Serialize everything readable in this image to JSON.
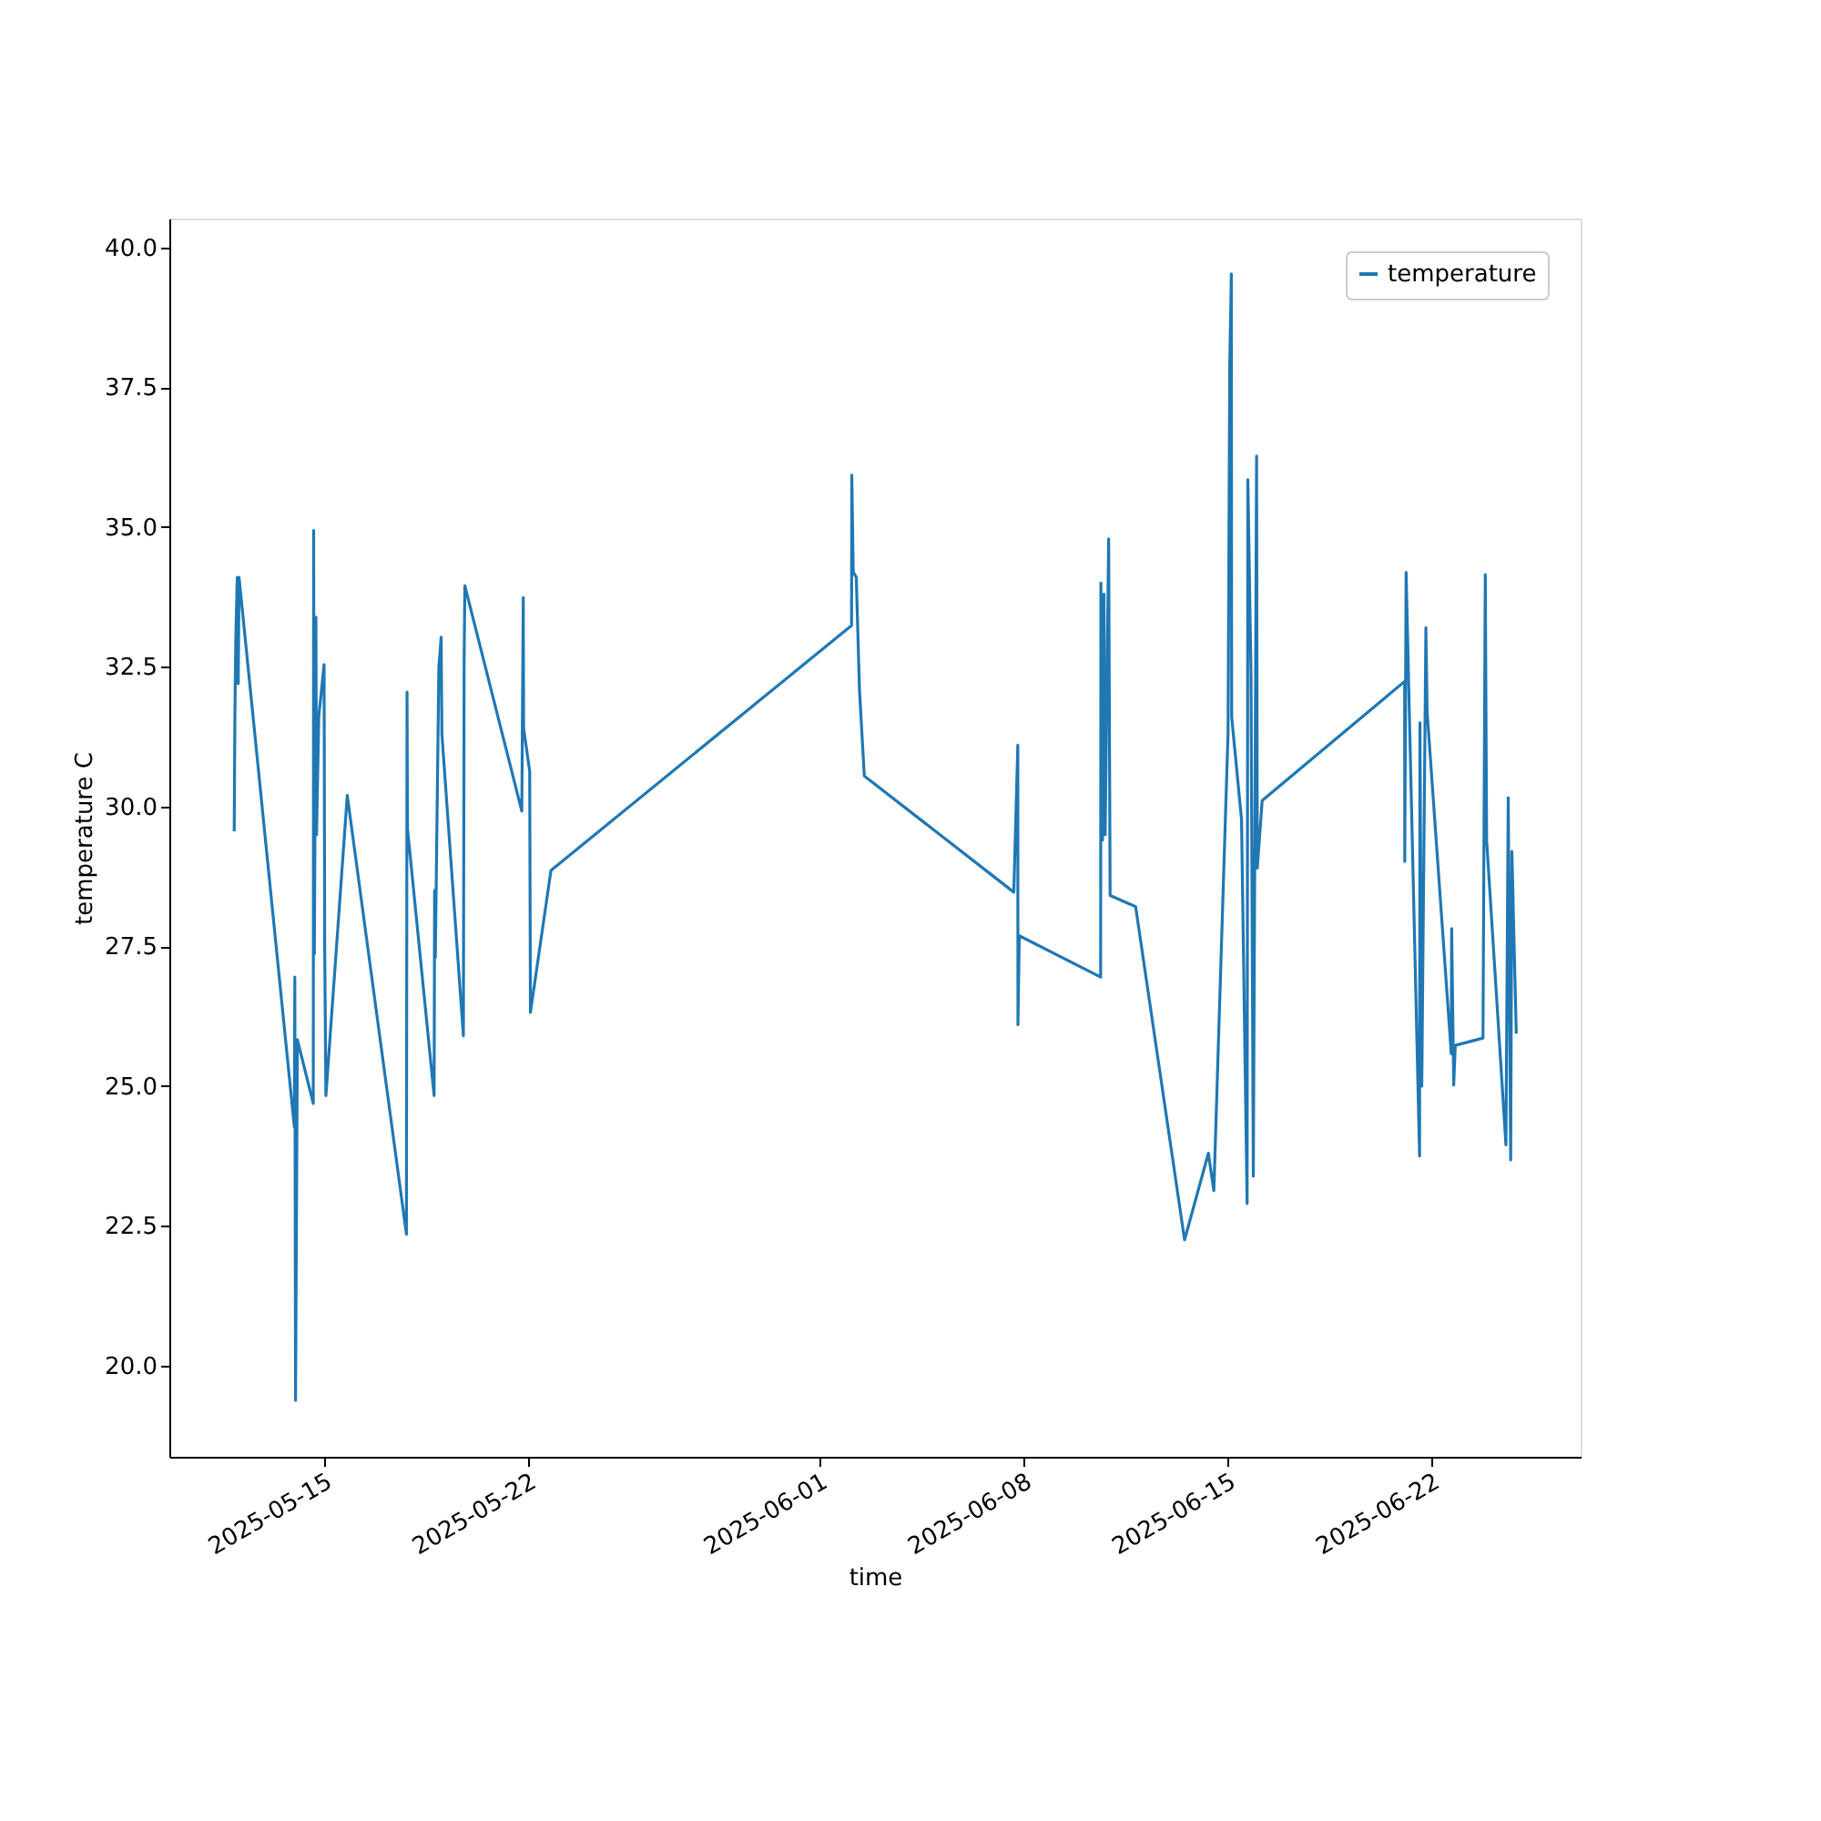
{
  "chart_data": {
    "type": "line",
    "xlabel": "time",
    "ylabel": "temperature C",
    "xlim": [
      "2025-05-09T17:00",
      "2025-06-27T03:00"
    ],
    "ylim": [
      18.37,
      40.52
    ],
    "xticks": [
      "2025-05-15",
      "2025-05-22",
      "2025-06-01",
      "2025-06-08",
      "2025-06-15",
      "2025-06-22"
    ],
    "yticks": [
      {
        "value": 20,
        "label": "20.0"
      },
      22.5,
      {
        "value": 25,
        "label": "25.0"
      },
      27.5,
      {
        "value": 30,
        "label": "30.0"
      },
      32.5,
      {
        "value": 35,
        "label": "35.0"
      },
      37.5,
      {
        "value": 40,
        "label": "40.0"
      }
    ],
    "grid": false,
    "legend": "top right",
    "marker": "none",
    "line_style": "solid",
    "x": [
      "2025-05-11T22:24",
      "2025-05-11T23:00",
      "2025-05-11T23:42",
      "2025-05-12T00:54",
      "2025-05-12T01:42",
      "2025-05-12T02:24",
      "2025-05-13T23:54",
      "2025-05-14T00:18",
      "2025-05-14T00:54",
      "2025-05-14T02:24",
      "2025-05-14T15:30",
      "2025-05-14T15:48",
      "2025-05-14T16:24",
      "2025-05-14T17:42",
      "2025-05-14T18:12",
      "2025-05-14T20:00",
      "2025-05-15T00:24",
      "2025-05-15T00:54",
      "2025-05-15T01:54",
      "2025-05-15T19:30",
      "2025-05-17T20:12",
      "2025-05-17T20:42",
      "2025-05-17T21:06",
      "2025-05-18T19:00",
      "2025-05-18T19:24",
      "2025-05-18T20:00",
      "2025-05-18T22:54",
      "2025-05-19T00:48",
      "2025-05-19T01:24",
      "2025-05-19T19:06",
      "2025-05-19T19:42",
      "2025-05-19T20:18",
      "2025-05-21T19:12",
      "2025-05-21T20:24",
      "2025-05-21T20:42",
      "2025-05-22T01:42",
      "2025-05-22T02:18",
      "2025-05-22T19:12",
      "2025-06-02T02:42",
      "2025-06-02T02:54",
      "2025-06-02T04:06",
      "2025-06-02T06:36",
      "2025-06-02T09:12",
      "2025-06-02T13:12",
      "2025-06-07T16:18",
      "2025-06-07T19:36",
      "2025-06-07T19:42",
      "2025-06-07T20:48",
      "2025-06-10T15:48",
      "2025-06-10T16:00",
      "2025-06-10T17:18",
      "2025-06-10T18:30",
      "2025-06-10T19:30",
      "2025-06-10T22:24",
      "2025-06-10T23:36",
      "2025-06-11T20:36",
      "2025-06-13T12:54",
      "2025-06-14T08:30",
      "2025-06-14T13:00",
      "2025-06-15T00:42",
      "2025-06-15T02:06",
      "2025-06-15T03:24",
      "2025-06-15T03:42",
      "2025-06-15T11:48",
      "2025-06-15T16:24",
      "2025-06-15T17:00",
      "2025-06-15T19:36",
      "2025-06-15T21:30",
      "2025-06-16T00:12",
      "2025-06-16T00:48",
      "2025-06-16T04:48",
      "2025-06-21T02:06",
      "2025-06-21T02:12",
      "2025-06-21T03:18",
      "2025-06-21T14:24",
      "2025-06-21T14:42",
      "2025-06-21T16:12",
      "2025-06-21T19:36",
      "2025-06-21T20:36",
      "2025-06-22T16:30",
      "2025-06-22T16:48",
      "2025-06-22T18:30",
      "2025-06-22T19:48",
      "2025-06-23T18:36",
      "2025-06-23T20:30",
      "2025-06-23T21:36",
      "2025-06-24T13:30",
      "2025-06-24T15:24",
      "2025-06-24T17:24",
      "2025-06-24T18:24",
      "2025-06-24T22:00"
    ],
    "series": [
      {
        "name": "temperature",
        "color": "#1f77b4",
        "values": [
          29.56,
          31.7,
          33.0,
          34.1,
          32.2,
          34.1,
          24.27,
          26.95,
          19.38,
          25.83,
          24.69,
          34.94,
          27.37,
          33.39,
          29.5,
          31.6,
          32.54,
          27.5,
          24.83,
          30.2,
          22.35,
          32.05,
          29.6,
          24.83,
          28.5,
          27.3,
          32.5,
          33.03,
          31.3,
          25.9,
          32.6,
          33.95,
          29.92,
          33.74,
          31.4,
          30.63,
          26.32,
          28.86,
          33.24,
          35.93,
          34.2,
          34.1,
          32.1,
          30.55,
          28.47,
          31.1,
          26.1,
          27.69,
          26.95,
          34.0,
          29.4,
          33.8,
          29.5,
          34.79,
          28.41,
          28.21,
          22.25,
          23.8,
          23.13,
          31.32,
          37.9,
          39.53,
          31.6,
          29.77,
          22.9,
          35.85,
          32.4,
          23.39,
          36.27,
          28.9,
          30.11,
          32.24,
          29.02,
          34.19,
          23.75,
          31.5,
          25.0,
          33.2,
          31.7,
          25.58,
          27.82,
          25.02,
          25.73,
          25.86,
          34.15,
          29.4,
          23.95,
          30.16,
          23.68,
          29.2,
          25.94
        ]
      }
    ]
  }
}
